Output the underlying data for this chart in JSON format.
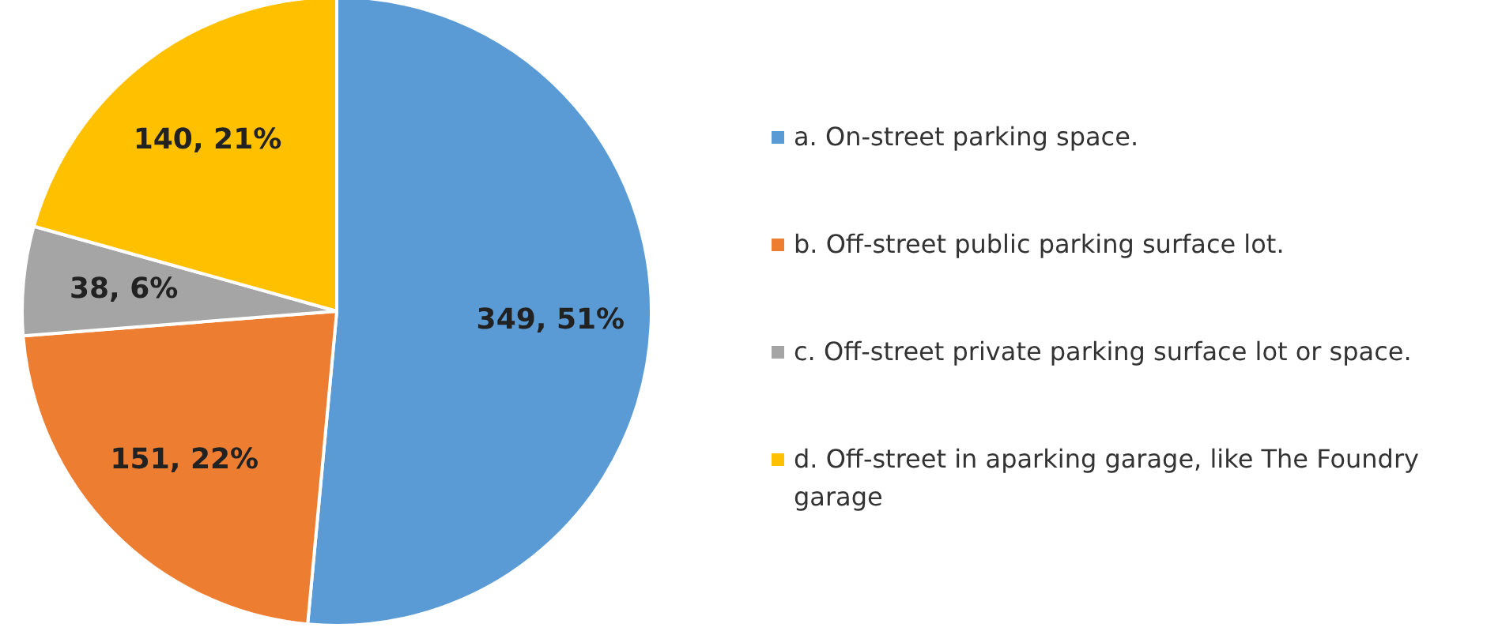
{
  "chart_data": {
    "type": "pie",
    "categories": [
      "a. On-street parking space.",
      "b. Off-street public parking surface lot.",
      "c. Off-street private parking surface lot or space.",
      "d. Off-street in aparking garage, like The Foundry garage"
    ],
    "values": [
      349,
      151,
      38,
      140
    ],
    "colors": [
      "#5b9bd5",
      "#ed7d31",
      "#a5a5a5",
      "#ffc000"
    ],
    "value_labels": [
      "349, 51%",
      "151, 22%",
      "38, 6%",
      "140, 21%"
    ],
    "legend": "right"
  }
}
